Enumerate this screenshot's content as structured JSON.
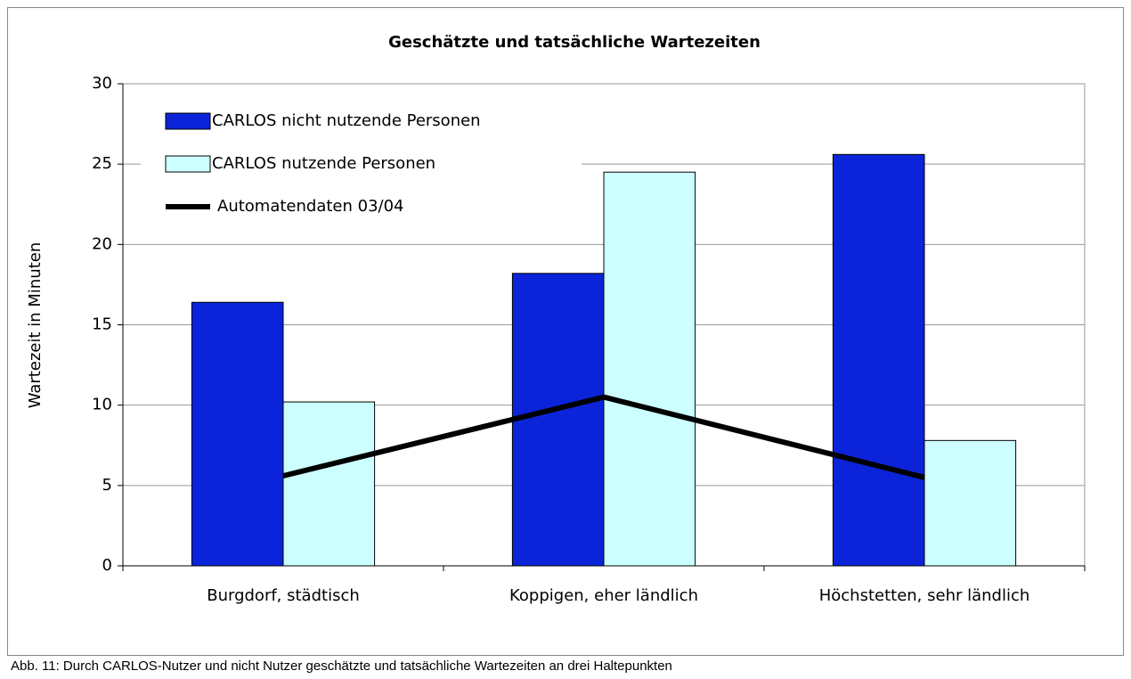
{
  "chart_data": {
    "type": "bar",
    "title": "Geschätzte und tatsächliche Wartezeiten",
    "y_label": "Wartezeit in Minuten",
    "caption": "Abb. 11: Durch CARLOS-Nutzer und nicht Nutzer geschätzte und tatsächliche Wartezeiten an drei Haltepunkten",
    "categories": [
      "Burgdorf, städtisch",
      "Koppigen, eher ländlich",
      "Höchstetten, sehr ländlich"
    ],
    "series": [
      {
        "name": "CARLOS nicht nutzende Personen",
        "type": "bar",
        "color": "#0b24d9",
        "values": [
          16.4,
          18.2,
          25.6
        ]
      },
      {
        "name": "CARLOS nutzende Personen",
        "type": "bar",
        "color": "#ccffff",
        "values": [
          10.2,
          24.5,
          7.8
        ]
      },
      {
        "name": "Automatendaten 03/04",
        "type": "line",
        "color": "#000000",
        "values": [
          5.6,
          10.5,
          5.5
        ]
      }
    ],
    "ylim": [
      0,
      30
    ],
    "yticks": [
      0,
      5,
      10,
      15,
      20,
      25,
      30
    ],
    "grid": true,
    "legend": "upper left"
  }
}
